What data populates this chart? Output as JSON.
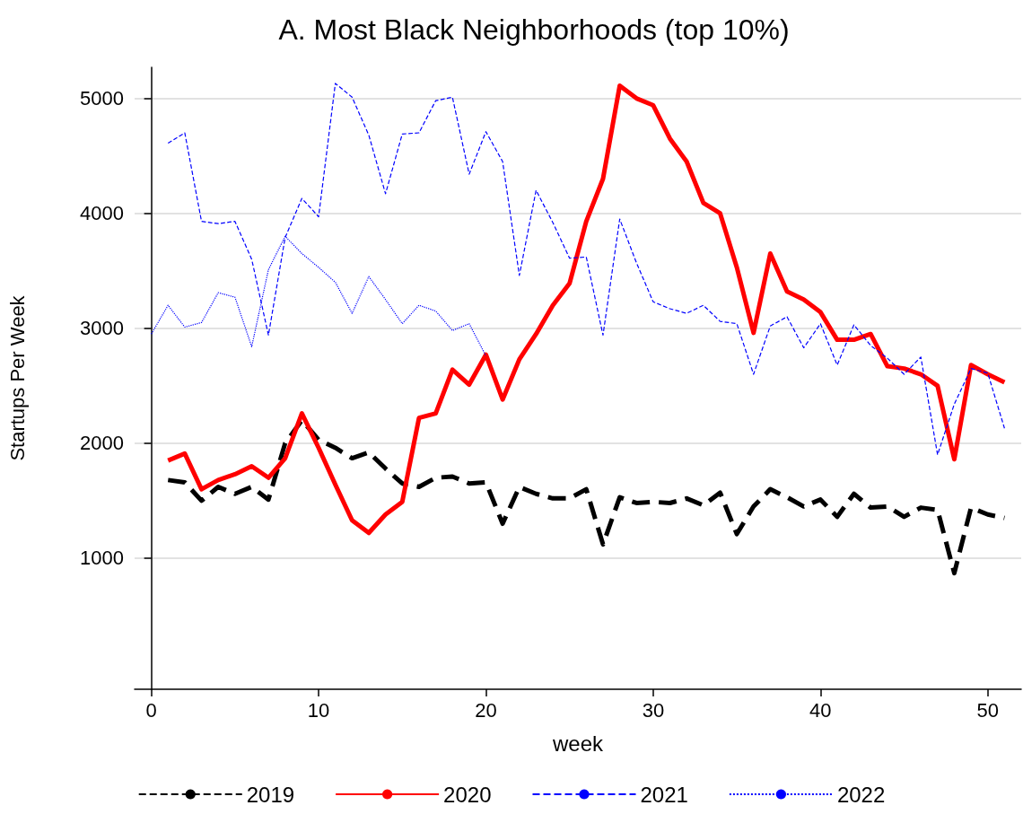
{
  "chart_data": {
    "type": "line",
    "title": "A. Most Black Neighborhoods (top 10%)",
    "xlabel": "week",
    "ylabel": "Startups Per Week",
    "xlim": [
      -1,
      52
    ],
    "xticks": [
      0,
      10,
      20,
      30,
      40,
      50
    ],
    "ylim": [
      -140,
      5270
    ],
    "yticks": [
      1000,
      2000,
      3000,
      4000,
      5000
    ],
    "grid": "y",
    "legend": "bottom",
    "marker": "none",
    "series": [
      {
        "name": "2019",
        "color": "#000000",
        "line_style": "dashed",
        "x": [
          1,
          2,
          3,
          4,
          5,
          6,
          7,
          8,
          9,
          10,
          11,
          12,
          13,
          14,
          15,
          16,
          17,
          18,
          19,
          20,
          21,
          22,
          23,
          24,
          25,
          26,
          27,
          28,
          29,
          30,
          31,
          32,
          33,
          34,
          35,
          36,
          37,
          38,
          39,
          40,
          41,
          42,
          43,
          44,
          45,
          46,
          47,
          48,
          49,
          50,
          51
        ],
        "values": [
          1680,
          1660,
          1500,
          1620,
          1560,
          1620,
          1510,
          2000,
          2200,
          2030,
          1960,
          1870,
          1920,
          1780,
          1650,
          1620,
          1700,
          1710,
          1650,
          1660,
          1300,
          1620,
          1560,
          1520,
          1520,
          1600,
          1120,
          1530,
          1480,
          1490,
          1480,
          1520,
          1460,
          1570,
          1210,
          1450,
          1600,
          1530,
          1450,
          1510,
          1360,
          1560,
          1440,
          1450,
          1360,
          1440,
          1420,
          870,
          1440,
          1380,
          1350
        ]
      },
      {
        "name": "2020",
        "color": "#ff0000",
        "line_style": "solid",
        "x": [
          1,
          2,
          3,
          4,
          5,
          6,
          7,
          8,
          9,
          10,
          11,
          12,
          13,
          14,
          15,
          16,
          17,
          18,
          19,
          20,
          21,
          22,
          23,
          24,
          25,
          26,
          27,
          28,
          29,
          30,
          31,
          32,
          33,
          34,
          35,
          36,
          37,
          38,
          39,
          40,
          41,
          42,
          43,
          44,
          45,
          46,
          47,
          48,
          49,
          50,
          51
        ],
        "values": [
          1850,
          1910,
          1600,
          1680,
          1730,
          1800,
          1700,
          1870,
          2260,
          1960,
          1640,
          1330,
          1220,
          1380,
          1490,
          2220,
          2260,
          2640,
          2510,
          2770,
          2380,
          2730,
          2950,
          3200,
          3390,
          3930,
          4300,
          5110,
          5000,
          4940,
          4650,
          4450,
          4090,
          4000,
          3530,
          2960,
          3650,
          3320,
          3250,
          3140,
          2900,
          2900,
          2950,
          2670,
          2650,
          2600,
          2500,
          1860,
          2680,
          2600,
          2530
        ]
      },
      {
        "name": "2021",
        "color": "#0000ff",
        "line_style": "dashed",
        "x": [
          1,
          2,
          3,
          4,
          5,
          6,
          7,
          8,
          9,
          10,
          11,
          12,
          13,
          14,
          15,
          16,
          17,
          18,
          19,
          20,
          21,
          22,
          23,
          24,
          25,
          26,
          27,
          28,
          29,
          30,
          31,
          32,
          33,
          34,
          35,
          36,
          37,
          38,
          39,
          40,
          41,
          42,
          43,
          44,
          45,
          46,
          47,
          48,
          49,
          50,
          51
        ],
        "values": [
          4610,
          4700,
          3930,
          3910,
          3930,
          3600,
          2940,
          3790,
          4130,
          3970,
          5130,
          5010,
          4680,
          4170,
          4690,
          4700,
          4980,
          5010,
          4340,
          4710,
          4450,
          3460,
          4200,
          3920,
          3610,
          3620,
          2940,
          3950,
          3570,
          3230,
          3170,
          3130,
          3200,
          3060,
          3040,
          2600,
          3020,
          3100,
          2830,
          3040,
          2680,
          3030,
          2850,
          2740,
          2600,
          2750,
          1900,
          2340,
          2650,
          2610,
          2130
        ]
      },
      {
        "name": "2022",
        "color": "#0000ff",
        "line_style": "dotted",
        "x": [
          0,
          1,
          2,
          3,
          4,
          5,
          6,
          7,
          8,
          9,
          10,
          11,
          12,
          13,
          14,
          15,
          16,
          17,
          18,
          19,
          20
        ],
        "values": [
          2950,
          3200,
          3010,
          3050,
          3310,
          3270,
          2840,
          3510,
          3800,
          3650,
          3530,
          3400,
          3130,
          3450,
          3250,
          3040,
          3200,
          3150,
          2980,
          3040,
          2760
        ]
      }
    ]
  }
}
